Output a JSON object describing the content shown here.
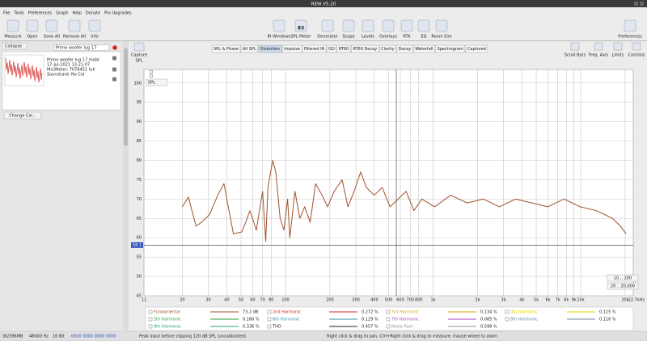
{
  "window_title": "REW V5.20",
  "menu": [
    "File",
    "Tools",
    "Preferences",
    "Graph",
    "Help",
    "Donate",
    "Pro Upgrades"
  ],
  "toolbar_left": [
    "Measure",
    "Open",
    "Save All",
    "Remove All",
    "Info"
  ],
  "toolbar_center": [
    "IR Windows",
    "SPL Meter",
    "Generator",
    "Scope",
    "Levels",
    "Overlays",
    "RTA",
    "EQ",
    "Room Sim"
  ],
  "spl_meter_reading": "83",
  "toolbar_right": [
    "Preferences"
  ],
  "side_panel": {
    "collapse": "Collapse",
    "measurement_name": "Primo woofer lug 17",
    "info": [
      "Primo woofer lug 17.mdat",
      "17-Jul-2021 13:21:07",
      "Mic/Meter: 7076451 full",
      "Soundcard: No Cal"
    ],
    "change_cal": "Change Cal..."
  },
  "capture": "Capture",
  "tabs": [
    "SPL & Phase",
    "All SPL",
    "Distortion",
    "Impulse",
    "Filtered IR",
    "GD",
    "RT60",
    "RT60 Decay",
    "Clarity",
    "Decay",
    "Waterfall",
    "Spectrogram",
    "Captured"
  ],
  "selected_tab": 2,
  "graph_tools": [
    "Scroll Bars",
    "Freq. Axis",
    "Limits",
    "Controls"
  ],
  "chart_data": {
    "type": "line",
    "y_label": "SPL",
    "y_selector": "SPL",
    "xlim": [
      11,
      22700
    ],
    "ylim": [
      45,
      103.5
    ],
    "log_x": true,
    "grid": true,
    "xticks": [
      11,
      20,
      30,
      40,
      50,
      60,
      70,
      80,
      100,
      200,
      300,
      400,
      500,
      600,
      700,
      800,
      {
        "value": 1000,
        "label": "1k"
      },
      {
        "value": 2000,
        "label": "2k"
      },
      {
        "value": 3000,
        "label": "3k"
      },
      {
        "value": 4000,
        "label": "4k"
      },
      {
        "value": 5000,
        "label": "5k"
      },
      {
        "value": 6000,
        "label": "6k"
      },
      {
        "value": 7000,
        "label": "7k"
      },
      {
        "value": 8000,
        "label": "8k"
      },
      {
        "value": 9000,
        "label": "9k"
      },
      {
        "value": 10000,
        "label": "10k"
      },
      {
        "value": 20000,
        "label": "20k"
      },
      {
        "value": 22700,
        "label": "22.7kHz"
      }
    ],
    "yticks": [
      45,
      50,
      55,
      60,
      65,
      70,
      75,
      80,
      85,
      90,
      95,
      100
    ],
    "cursor_level": 58.1,
    "x": [
      20,
      22,
      24.8,
      27,
      30.6,
      34.8,
      38.3,
      41,
      44.4,
      50.5,
      53.8,
      57.4,
      63.5,
      70,
      73.5,
      76.1,
      82,
      86,
      92,
      97.7,
      103.4,
      107,
      116,
      125,
      135,
      147,
      160,
      177,
      193,
      214,
      242,
      265,
      292,
      323,
      353,
      399,
      452,
      511,
      580,
      656,
      742,
      840,
      1024,
      1318,
      1700,
      2187,
      2814,
      3620,
      4660,
      5990,
      7710,
      9920,
      12770,
      14530,
      16430,
      18600,
      20300
    ],
    "series": [
      {
        "name": "Fundamental",
        "color": "#a0522d",
        "reading": "73.2 dB",
        "values": [
          68,
          70.5,
          63,
          64,
          66,
          71,
          74,
          68,
          61,
          61.5,
          64,
          67,
          62,
          72,
          59,
          73,
          80,
          77,
          65,
          62,
          70,
          60,
          72,
          65,
          68,
          64,
          74,
          71,
          68,
          72,
          75,
          68,
          72,
          77,
          73,
          71,
          73,
          68,
          70,
          72,
          67,
          70,
          68,
          71,
          69,
          70,
          68,
          70,
          69,
          68,
          70,
          68,
          67,
          66,
          65,
          63,
          61
        ]
      }
    ],
    "other_traces": [
      {
        "name": "2nd Harmonic",
        "color": "#e02020",
        "reading": "0.272 %"
      },
      {
        "name": "3rd Harmonic",
        "color": "#e0a800",
        "reading": "0.134 %"
      },
      {
        "name": "4th Harmonic",
        "color": "#e8d000",
        "reading": "0.115 %"
      },
      {
        "name": "5th Harmonic",
        "color": "#2e9e3e",
        "reading": "0.166 %"
      },
      {
        "name": "6th Harmonic",
        "color": "#3a8fa8",
        "reading": "0.129 %"
      },
      {
        "name": "7th Harmonic",
        "color": "#b040c0",
        "reading": "0.085 %"
      },
      {
        "name": "8th Harmonic",
        "color": "#7080a0",
        "reading": "0.116 %"
      },
      {
        "name": "9th Harmonic",
        "color": "#20a080",
        "reading": "0.336 %"
      },
      {
        "name": "THD",
        "color": "#202020",
        "reading": "0.457 %"
      },
      {
        "name": "Noise floor",
        "color": "#909090",
        "reading": "0.598 %"
      }
    ],
    "range_buttons": [
      "10 .. 200",
      "20 .. 20,000"
    ]
  },
  "status_bar": [
    "30/396MB",
    "48000 Hz",
    "16 Bit",
    "0000 0000 0000 0000",
    "Peak input before clipping 120 dB SPL (uncalibrated)",
    "Right click & drag to pan. Ctrl+Right click & drag to measure, mouse wheel to zoom"
  ]
}
